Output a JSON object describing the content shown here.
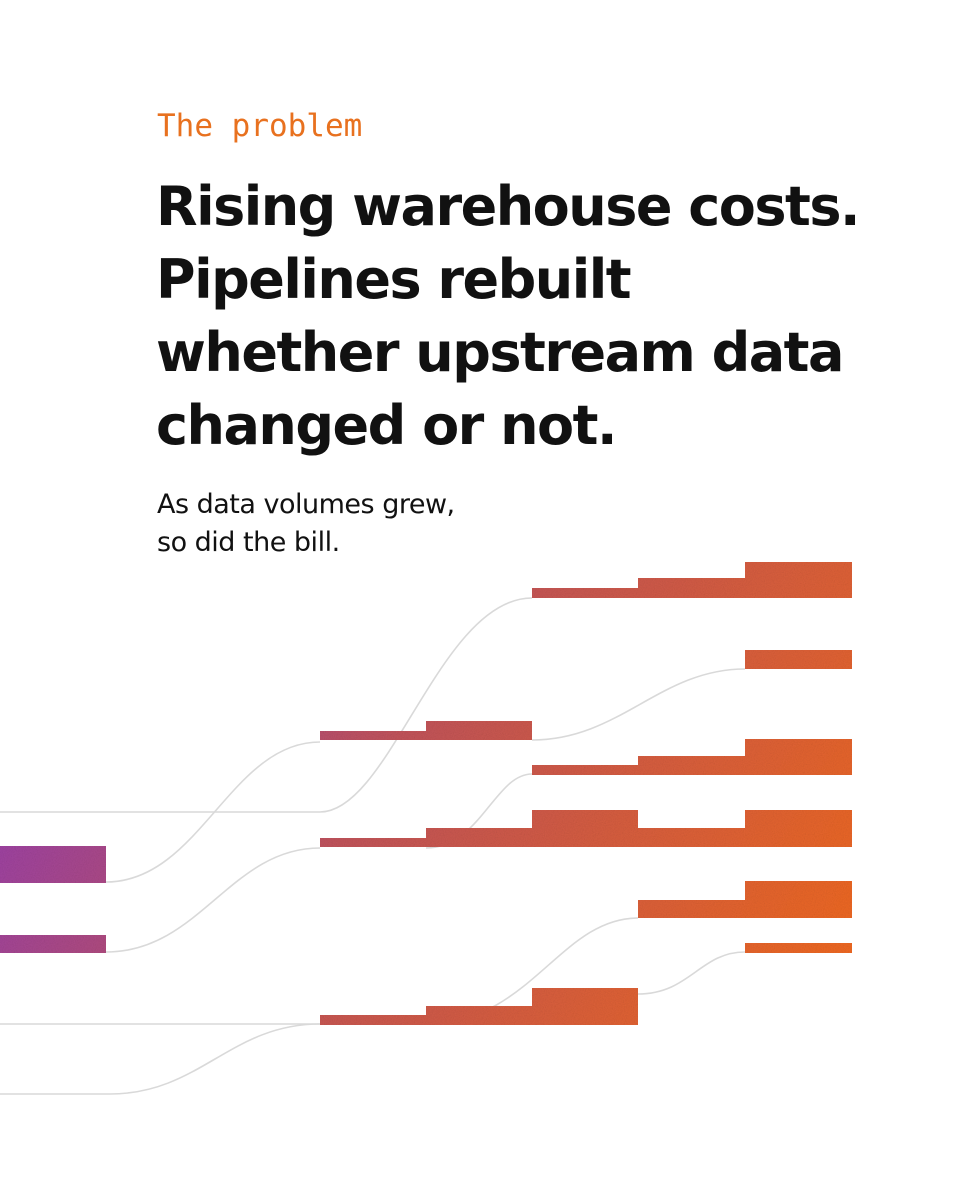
{
  "eyebrow": "The problem",
  "headline": "Rising warehouse costs. Pipelines rebuilt whether upstream data changed or not.",
  "subline": [
    "As data volumes grew,",
    "so did the bill."
  ],
  "colors": {
    "eyebrow": "#e8711f",
    "text": "#111111",
    "line": "#d9d9d9",
    "gradient_start": "#8e3bc2",
    "gradient_mid": "#c2545a",
    "gradient_end": "#f26a1d"
  }
}
